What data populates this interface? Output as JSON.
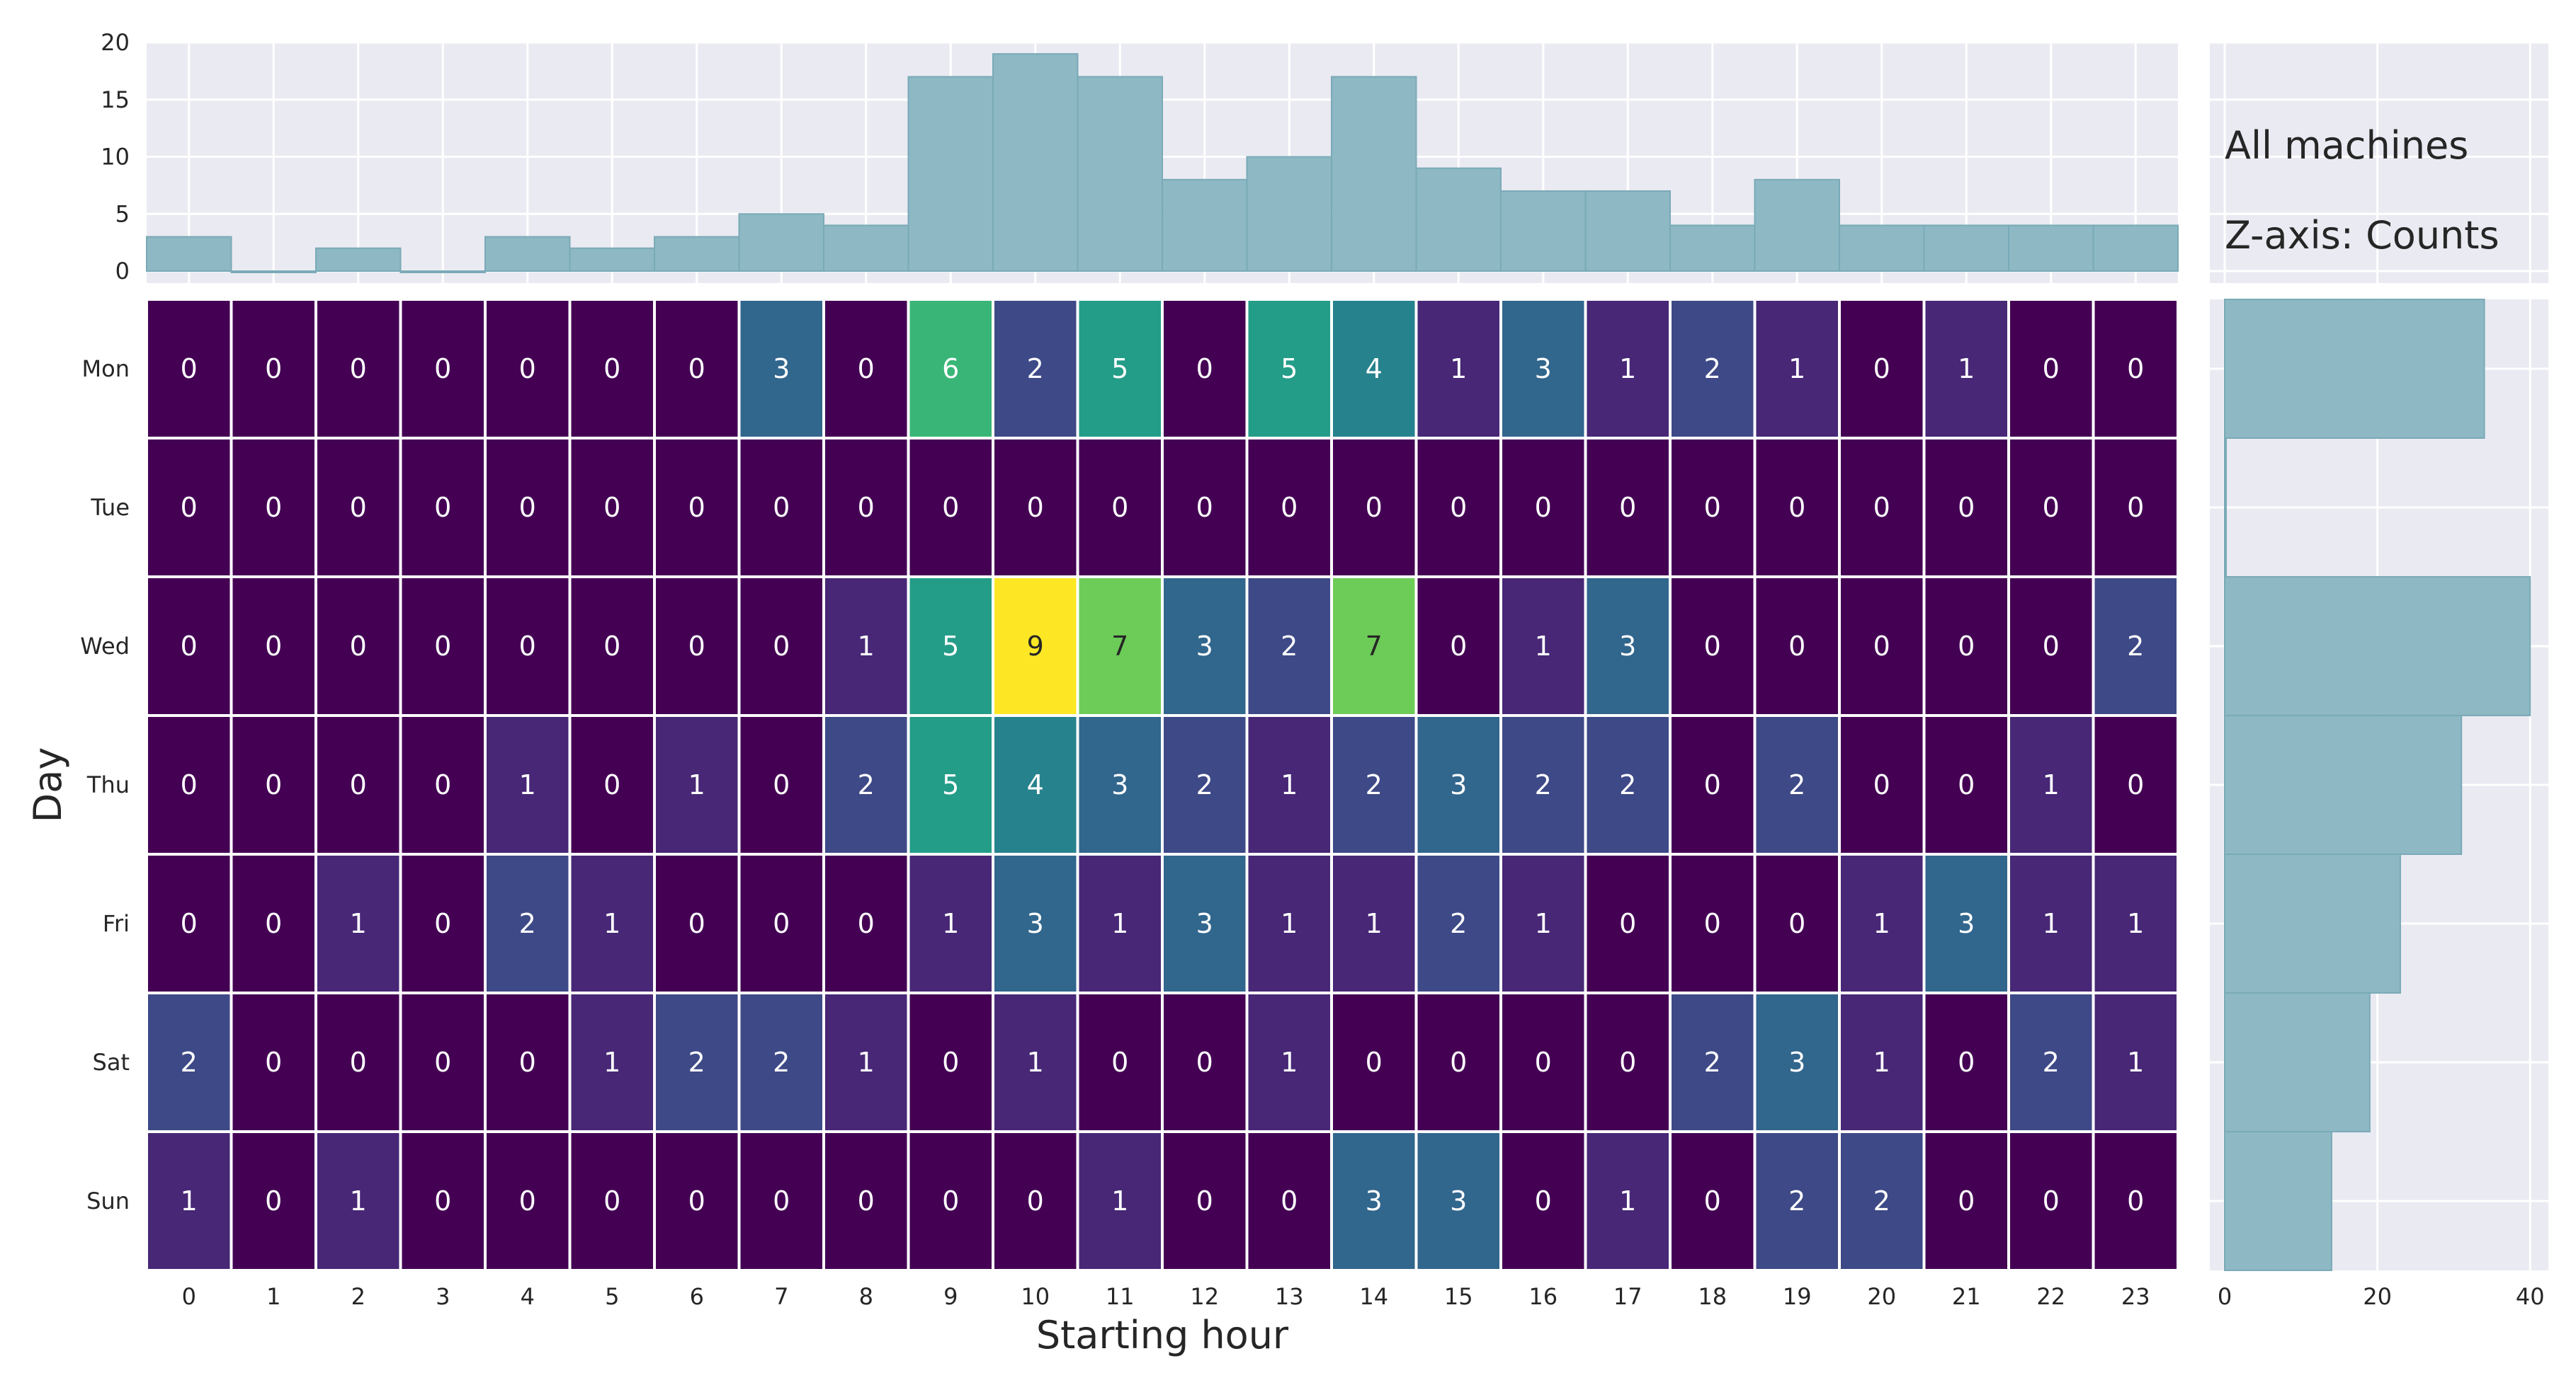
{
  "chart_data": [
    {
      "type": "heatmap",
      "xlabel": "Starting hour",
      "ylabel": "Day",
      "x": [
        "0",
        "1",
        "2",
        "3",
        "4",
        "5",
        "6",
        "7",
        "8",
        "9",
        "10",
        "11",
        "12",
        "13",
        "14",
        "15",
        "16",
        "17",
        "18",
        "19",
        "20",
        "21",
        "22",
        "23"
      ],
      "y": [
        "Mon",
        "Tue",
        "Wed",
        "Thu",
        "Fri",
        "Sat",
        "Sun"
      ],
      "values": [
        [
          0,
          0,
          0,
          0,
          0,
          0,
          0,
          3,
          0,
          6,
          2,
          5,
          0,
          5,
          4,
          1,
          3,
          1,
          2,
          1,
          0,
          1,
          0,
          0
        ],
        [
          0,
          0,
          0,
          0,
          0,
          0,
          0,
          0,
          0,
          0,
          0,
          0,
          0,
          0,
          0,
          0,
          0,
          0,
          0,
          0,
          0,
          0,
          0,
          0
        ],
        [
          0,
          0,
          0,
          0,
          0,
          0,
          0,
          0,
          1,
          5,
          9,
          7,
          3,
          2,
          7,
          0,
          1,
          3,
          0,
          0,
          0,
          0,
          0,
          2
        ],
        [
          0,
          0,
          0,
          0,
          1,
          0,
          1,
          0,
          2,
          5,
          4,
          3,
          2,
          1,
          2,
          3,
          2,
          2,
          0,
          2,
          0,
          0,
          1,
          0
        ],
        [
          0,
          0,
          1,
          0,
          2,
          1,
          0,
          0,
          0,
          1,
          3,
          1,
          3,
          1,
          1,
          2,
          1,
          0,
          0,
          0,
          1,
          3,
          1,
          1
        ],
        [
          2,
          0,
          0,
          0,
          0,
          1,
          2,
          2,
          1,
          0,
          1,
          0,
          0,
          1,
          0,
          0,
          0,
          0,
          2,
          3,
          1,
          0,
          2,
          1
        ],
        [
          1,
          0,
          1,
          0,
          0,
          0,
          0,
          0,
          0,
          0,
          0,
          1,
          0,
          0,
          3,
          3,
          0,
          1,
          0,
          2,
          2,
          0,
          0,
          0
        ]
      ],
      "zlim": [
        0,
        9
      ],
      "colormap": "viridis"
    },
    {
      "type": "bar",
      "placement": "top marginal",
      "categories": [
        "0",
        "1",
        "2",
        "3",
        "4",
        "5",
        "6",
        "7",
        "8",
        "9",
        "10",
        "11",
        "12",
        "13",
        "14",
        "15",
        "16",
        "17",
        "18",
        "19",
        "20",
        "21",
        "22",
        "23"
      ],
      "values": [
        3,
        0,
        2,
        0,
        3,
        2,
        3,
        5,
        4,
        17,
        19,
        17,
        8,
        10,
        17,
        9,
        7,
        7,
        4,
        8,
        4,
        4,
        4,
        4
      ],
      "ylim": [
        0,
        20
      ],
      "yticks": [
        "0",
        "5",
        "10",
        "15",
        "20"
      ],
      "color": "#88b5c1"
    },
    {
      "type": "bar",
      "orientation": "horizontal",
      "placement": "right marginal",
      "categories": [
        "Mon",
        "Tue",
        "Wed",
        "Thu",
        "Fri",
        "Sat",
        "Sun"
      ],
      "values": [
        34,
        0,
        40,
        31,
        23,
        19,
        14
      ],
      "xlim": [
        0,
        41
      ],
      "xticks": [
        "0",
        "20",
        "40"
      ],
      "color": "#88b5c1"
    }
  ],
  "annotations": {
    "line1": "All machines",
    "line2": "Z-axis: Counts"
  },
  "style": {
    "panel_bg": "#eaeaf2",
    "grid": "#ffffff",
    "bar_color": "#88b5c1",
    "text_color": "#262626"
  }
}
